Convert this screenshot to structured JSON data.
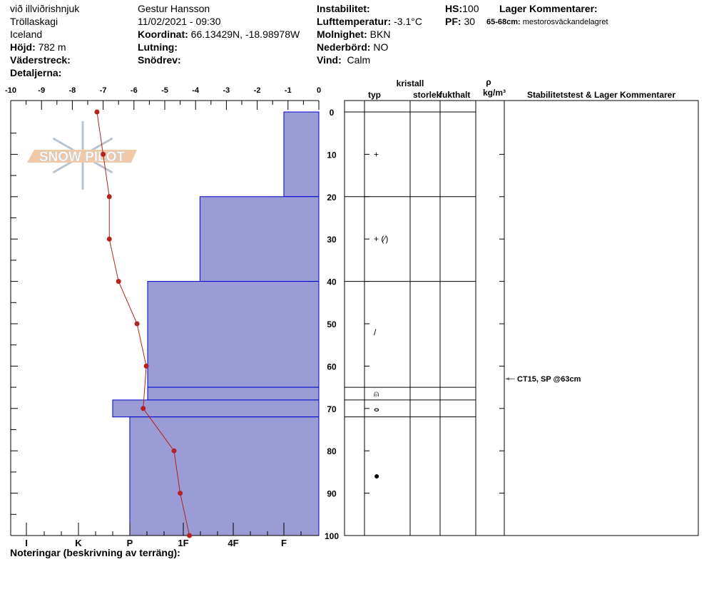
{
  "header": {
    "location": "við illviðrishnjuk",
    "range": "Tröllaskagi",
    "country": "Iceland",
    "elevation_label": "Höjd:",
    "elevation": "782 m",
    "aspect_label": "Väderstreck:",
    "details_label": "Detaljerna:",
    "observer": "Gestur Hansson",
    "datetime": "11/02/2021 - 09:30",
    "coord_label": "Koordinat:",
    "coord": "66.13429N, -18.98978W",
    "slope_label": "Lutning:",
    "drift_label": "Snödrev:",
    "instability_label": "Instabilitet:",
    "airtemp_label": "Lufttemperatur:",
    "airtemp": "-3.1°C",
    "sky_label": "Molnighet:",
    "sky": "BKN",
    "precip_label": "Nederbörd:",
    "precip": "NO",
    "wind_label": "Vind:",
    "wind": "Calm",
    "hs_label": "HS:",
    "hs": "100",
    "pf_label": "PF:",
    "pf": "30",
    "layer_comments_label": "Lager Kommentarer:",
    "layer_comment_range": "65-68cm:",
    "layer_comment": "mestorosväckandelagret"
  },
  "notes_label": "Noteringar (beskrivning av terräng):",
  "table_headers": {
    "kristall": "kristall",
    "typ": "typ",
    "storlek": "storlek",
    "fukthalt": "fukthalt",
    "rho": "ρ",
    "density_unit": "kg/m³",
    "comments": "Stabilitetstest & Lager Kommentarer"
  },
  "stability_test": {
    "text": "CT15, SP @63cm",
    "depth": 63
  },
  "watermark": "SNOW PILOT",
  "colors": {
    "hardness_fill": "#9b9bd6",
    "hardness_stroke": "#0000cc",
    "temperature": "#b22222"
  },
  "chart_data": {
    "type": "line",
    "temperature": {
      "axis_ticks": [
        -10,
        -9,
        -8,
        -7,
        -6,
        -5,
        -4,
        -3,
        -2,
        -1,
        0
      ],
      "xlim": [
        -10,
        0
      ],
      "depth": [
        0,
        10,
        20,
        30,
        40,
        50,
        60,
        70,
        80,
        90,
        100
      ],
      "values": [
        -7.2,
        -7.0,
        -6.8,
        -6.8,
        -6.5,
        -5.9,
        -5.6,
        -5.7,
        -4.7,
        -4.5,
        -4.2
      ]
    },
    "depth_axis": {
      "ylim": [
        0,
        100
      ],
      "ticks": [
        0,
        10,
        20,
        30,
        40,
        50,
        60,
        70,
        80,
        90,
        100
      ],
      "inverted": true
    },
    "hardness_axis": {
      "ticks": [
        "I",
        "K",
        "P",
        "1F",
        "4F",
        "F"
      ]
    },
    "layers": [
      {
        "top": 0,
        "bottom": 20,
        "hardness": "F",
        "grain": "+"
      },
      {
        "top": 20,
        "bottom": 40,
        "hardness": "1F+",
        "grain": "+ (⁄)"
      },
      {
        "top": 40,
        "bottom": 65,
        "hardness": "P+",
        "grain": "/"
      },
      {
        "top": 65,
        "bottom": 68,
        "hardness": "P+",
        "grain": "⍝"
      },
      {
        "top": 68,
        "bottom": 72,
        "hardness": "P-",
        "grain": "ⴰ"
      },
      {
        "top": 72,
        "bottom": 100,
        "hardness": "P",
        "grain": "●"
      }
    ]
  }
}
